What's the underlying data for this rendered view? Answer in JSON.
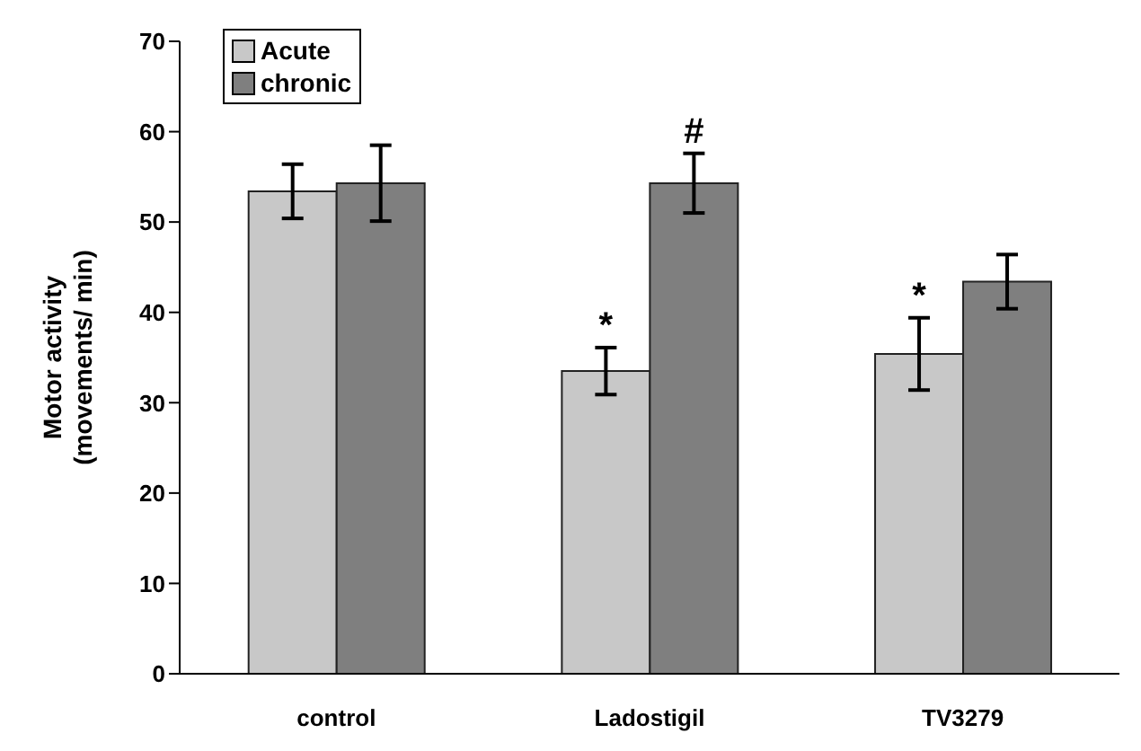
{
  "chart_data": {
    "type": "bar",
    "ylabel": "Motor activity (movements/ min)",
    "categories": [
      "control",
      "Ladostigil",
      "TV3279"
    ],
    "series": [
      {
        "name": "Acute",
        "color": "#c8c8c8",
        "values": [
          53.4,
          33.5,
          35.4
        ],
        "errors": [
          3.0,
          2.6,
          4.0
        ]
      },
      {
        "name": "chronic",
        "color": "#7f7f7f",
        "values": [
          54.3,
          54.3,
          43.4
        ],
        "errors": [
          4.2,
          3.3,
          3.0
        ]
      }
    ],
    "ylim": [
      0,
      70
    ],
    "yticks": [
      0,
      10,
      20,
      30,
      40,
      50,
      60,
      70
    ],
    "grid": false,
    "legend": "top left",
    "annotations": [
      {
        "text": "*",
        "x": "Ladostigil",
        "y": 33.5
      },
      {
        "text": "#",
        "x": "Ladostigil",
        "y": 54.3
      },
      {
        "text": "*",
        "x": "TV3279",
        "y": 35.4
      }
    ]
  }
}
